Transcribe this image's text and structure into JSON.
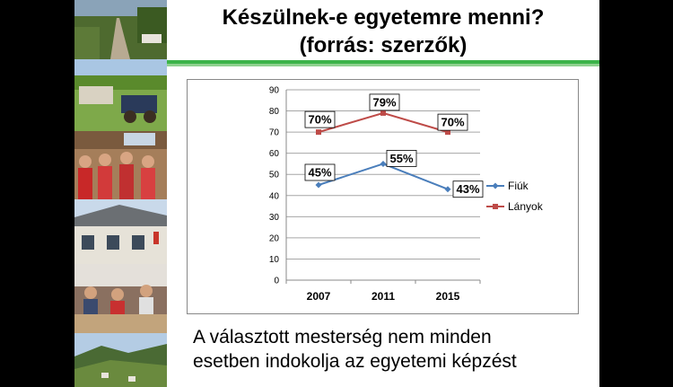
{
  "slide": {
    "title_line1": "Készülnek-e egyetemre menni?",
    "title_line2": "(forrás: szerzők)",
    "caption_line1": "A választott mesterség nem minden",
    "caption_line2": "esetben indokolja az egyetemi képzést",
    "accent_color": "#3cb44a"
  },
  "photos": [
    "village-road-photo",
    "horse-cart-photo",
    "classroom-students-photo",
    "school-building-photo",
    "students-writing-photo",
    "mountain-landscape-photo"
  ],
  "chart_data": {
    "type": "line",
    "categories": [
      "2007",
      "2011",
      "2015"
    ],
    "series": [
      {
        "name": "Fiúk",
        "values": [
          45,
          55,
          43
        ],
        "labels": [
          "45%",
          "55%",
          "43%"
        ],
        "color": "#4a7ebb"
      },
      {
        "name": "Lányok",
        "values": [
          70,
          79,
          70
        ],
        "labels": [
          "70%",
          "79%",
          "70%"
        ],
        "color": "#be4b48"
      }
    ],
    "ylim": [
      0,
      90
    ],
    "yticks": [
      0,
      10,
      20,
      30,
      40,
      50,
      60,
      70,
      80,
      90
    ],
    "grid": true,
    "legend": "right"
  }
}
